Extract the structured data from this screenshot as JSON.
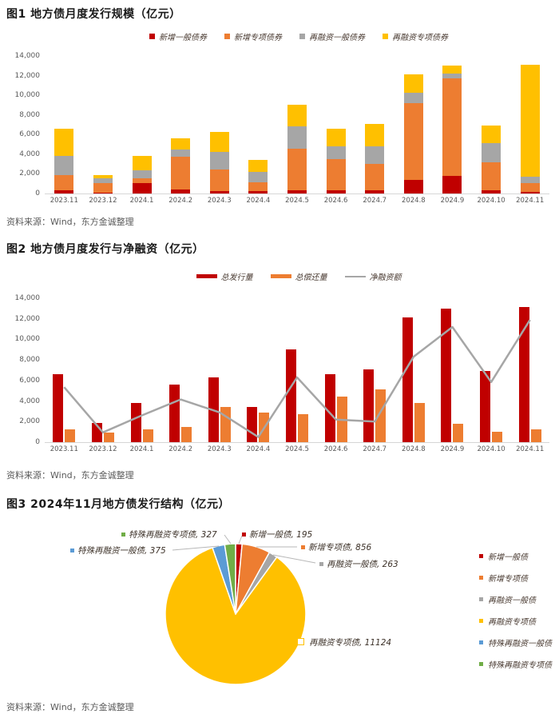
{
  "page": {
    "background": "#ffffff"
  },
  "source_note": "资料来源：Wind，东方金诚整理",
  "palette": {
    "red": "#c00000",
    "orange": "#ed7d31",
    "gray": "#a6a6a6",
    "yellow": "#ffc000",
    "blue": "#5b9bd5",
    "green": "#70ad47",
    "axis_text": "#595959",
    "leader_line": "#b7b7b7"
  },
  "chart_data": [
    {
      "type": "bar",
      "stacked": true,
      "title": "图1 地方债月度发行规模（亿元）",
      "categories": [
        "2023.11",
        "2023.12",
        "2024.1",
        "2024.2",
        "2024.3",
        "2024.4",
        "2024.5",
        "2024.6",
        "2024.7",
        "2024.8",
        "2024.9",
        "2024.10",
        "2024.11"
      ],
      "series": [
        {
          "name": "新增一般债券",
          "color": "#c00000",
          "values": [
            300,
            100,
            1100,
            430,
            270,
            220,
            300,
            300,
            350,
            1400,
            1800,
            300,
            195
          ]
        },
        {
          "name": "新增专项债券",
          "color": "#ed7d31",
          "values": [
            1600,
            930,
            470,
            3350,
            2160,
            950,
            4300,
            3200,
            2650,
            7800,
            9900,
            2900,
            856
          ]
        },
        {
          "name": "再融资一般债券",
          "color": "#a6a6a6",
          "values": [
            1900,
            540,
            760,
            680,
            1840,
            1000,
            2200,
            1300,
            1800,
            1050,
            500,
            1900,
            638
          ]
        },
        {
          "name": "再融资专项债券",
          "color": "#ffc000",
          "values": [
            2800,
            330,
            1520,
            1140,
            2030,
            1230,
            2200,
            1800,
            2300,
            1850,
            800,
            1800,
            11451
          ]
        }
      ],
      "ylim": [
        0,
        14000
      ],
      "ytick_step": 2000,
      "grid": false,
      "legend_position": "top"
    },
    {
      "type": "bar+line",
      "title": "图2 地方债月度发行与净融资（亿元）",
      "categories": [
        "2023.11",
        "2023.12",
        "2024.1",
        "2024.2",
        "2024.3",
        "2024.4",
        "2024.5",
        "2024.6",
        "2024.7",
        "2024.8",
        "2024.9",
        "2024.10",
        "2024.11"
      ],
      "series": [
        {
          "name": "总发行量",
          "kind": "bar",
          "color": "#c00000",
          "values": [
            6600,
            1900,
            3850,
            5600,
            6300,
            3400,
            9000,
            6600,
            7100,
            12100,
            13000,
            6900,
            13140
          ]
        },
        {
          "name": "总偿还量",
          "kind": "bar",
          "color": "#ed7d31",
          "values": [
            1250,
            950,
            1250,
            1450,
            3400,
            2900,
            2700,
            4400,
            5100,
            3800,
            1800,
            1050,
            1250
          ]
        },
        {
          "name": "净融资额",
          "kind": "line",
          "color": "#a6a6a6",
          "values": [
            5350,
            950,
            2600,
            4150,
            2900,
            500,
            6300,
            2200,
            2000,
            8300,
            11200,
            5850,
            11890
          ]
        }
      ],
      "ylim": [
        0,
        14000
      ],
      "ytick_step": 2000,
      "grid": false,
      "legend_position": "top"
    },
    {
      "type": "pie",
      "title": "图3 2024年11月地方债发行结构（亿元）",
      "total": 13140,
      "slices": [
        {
          "label": "新增一般债",
          "value": 195,
          "color": "#c00000",
          "callout": {
            "marker": "dot",
            "dot": [
              303,
              20
            ],
            "line": [
              [
                299,
                32
              ],
              [
                303,
                22
              ]
            ]
          }
        },
        {
          "label": "新增专项债",
          "value": 856,
          "color": "#ed7d31",
          "callout": {
            "marker": "dot",
            "dot": [
              377,
              36
            ],
            "line": [
              [
                321,
                36
              ],
              [
                372,
                36
              ]
            ]
          }
        },
        {
          "label": "再融资一般债",
          "value": 263,
          "color": "#a6a6a6",
          "callout": {
            "marker": "dot",
            "dot": [
              400,
              57
            ],
            "line": [
              [
                342,
                46
              ],
              [
                395,
                56
              ]
            ]
          }
        },
        {
          "label": "再融资专项债",
          "value": 11124,
          "color": "#ffc000",
          "callout": {
            "marker": "square",
            "dot": [
              372,
              155
            ]
          }
        },
        {
          "label": "特殊再融资一般债",
          "value": 375,
          "color": "#5b9bd5",
          "callout": {
            "marker": "dot",
            "dot": [
              88,
              40
            ],
            "line": [
              [
                216,
                40
              ],
              [
                274,
                35
              ]
            ]
          }
        },
        {
          "label": "特殊再融资专项债",
          "value": 327,
          "color": "#70ad47",
          "callout": {
            "marker": "dot",
            "dot": [
              152,
              20
            ],
            "line": [
              [
                281,
                21
              ],
              [
                289,
                32
              ]
            ]
          }
        }
      ],
      "legend": [
        "新增一般债",
        "新增专项债",
        "再融资一般债",
        "再融资专项债",
        "特殊再融资一般债",
        "特殊再融资专项债"
      ],
      "legend_position": "right",
      "pie_geometry": {
        "cx": 295,
        "cy": 120,
        "r": 88
      }
    }
  ]
}
